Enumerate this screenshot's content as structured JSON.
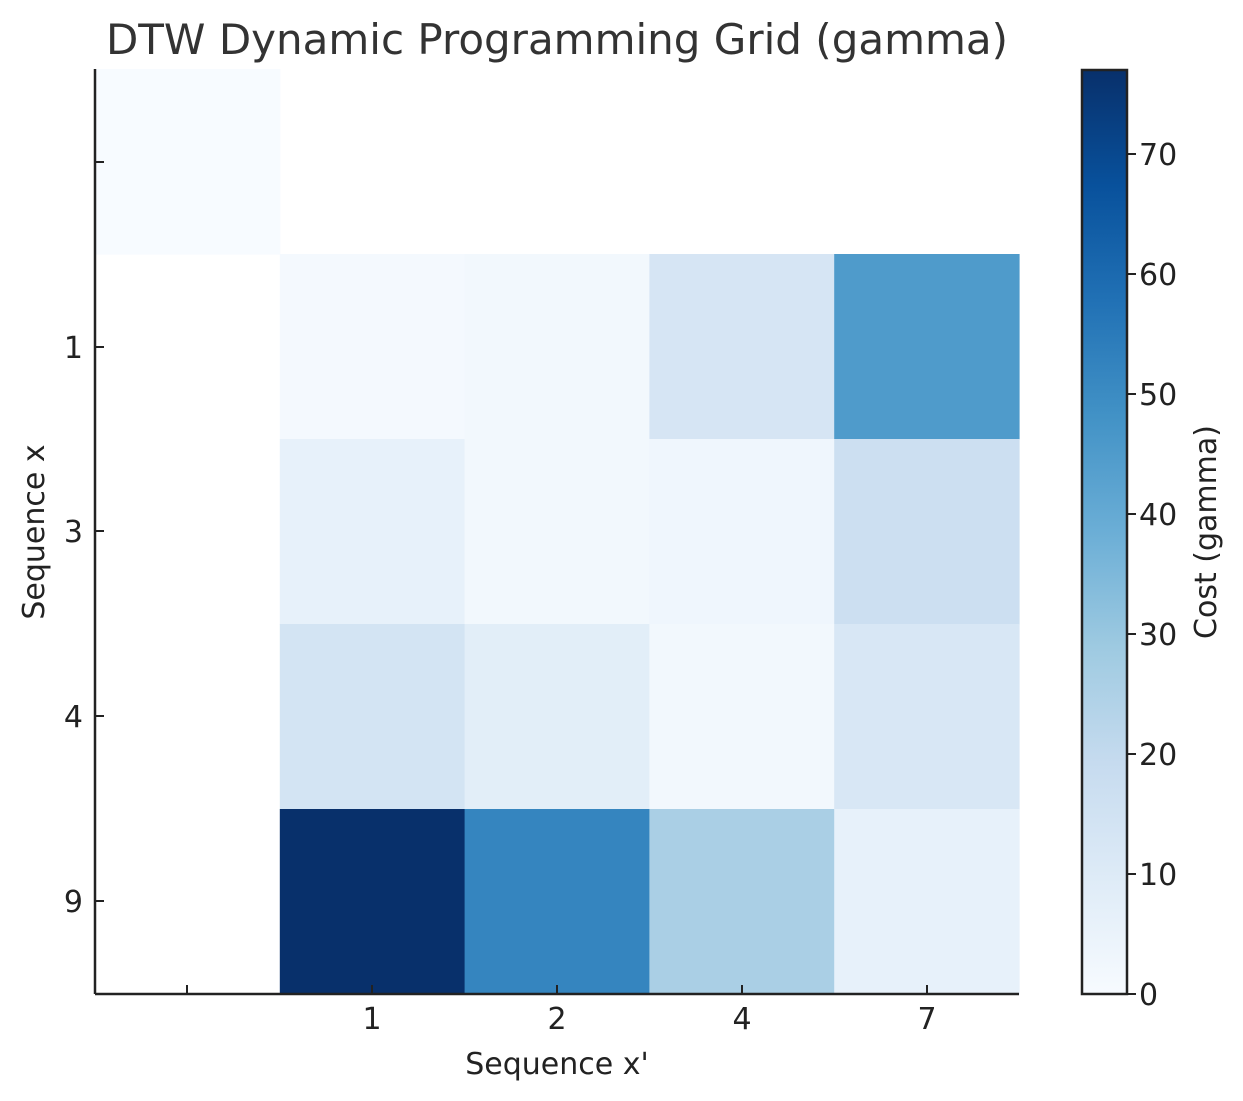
{
  "chart_data": {
    "type": "heatmap",
    "title": "DTW Dynamic Programming Grid (gamma)",
    "xlabel": "Sequence x'",
    "ylabel": "Sequence x",
    "x_tick_labels": [
      "",
      "1",
      "2",
      "4",
      "7"
    ],
    "y_tick_labels": [
      "",
      "1",
      "3",
      "4",
      "9"
    ],
    "values": [
      [
        0,
        null,
        null,
        null,
        null
      ],
      [
        null,
        1,
        2,
        13,
        45
      ],
      [
        null,
        6,
        2,
        3,
        17
      ],
      [
        null,
        14,
        8,
        2,
        12
      ],
      [
        null,
        77,
        52,
        26,
        6
      ]
    ],
    "colorbar": {
      "label": "Cost (gamma)",
      "range": [
        0,
        77
      ],
      "ticks": [
        0,
        10,
        20,
        30,
        40,
        50,
        60,
        70
      ],
      "colormap": "Blues"
    }
  }
}
